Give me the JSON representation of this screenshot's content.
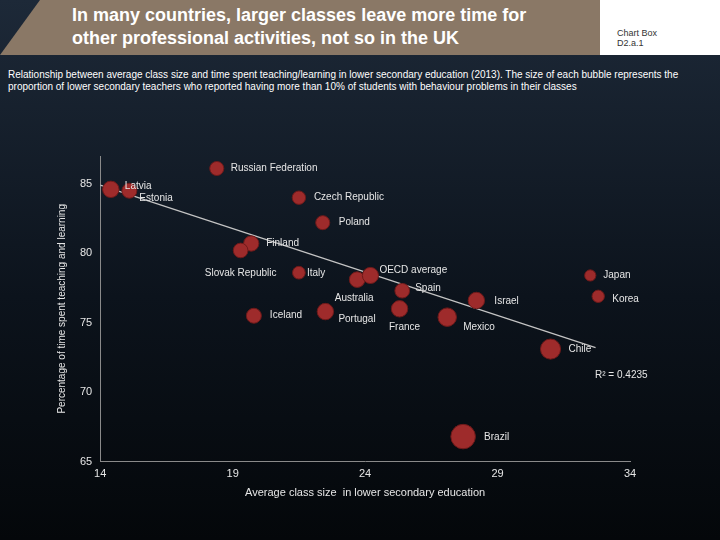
{
  "chart_data": {
    "type": "bubble",
    "title": "In many countries, larger classes leave more time for other professional activities, not so in the UK",
    "chart_box": [
      "Chart Box",
      "D2.a.1"
    ],
    "subtitle": "Relationship between average class size and time spent teaching/learning in lower secondary education (2013). The size of each bubble represents the proportion of lower secondary teachers who reported having more than 10% of students with behaviour problems in their classes",
    "x_label": "Average class size  in lower secondary education",
    "y_label": "Percentage of time spent teaching and learning",
    "xlim": [
      14,
      34
    ],
    "xticks": [
      14,
      19,
      24,
      29,
      34
    ],
    "ylim": [
      65,
      87
    ],
    "yticks": [
      65,
      70,
      75,
      80,
      85
    ],
    "grid": false,
    "color": "#9e2b2b",
    "points": [
      {
        "label": "Latvia",
        "x": 14.4,
        "y": 84.6,
        "size": 30
      },
      {
        "label": "Estonia",
        "x": 15.1,
        "y": 84.5,
        "size": 25
      },
      {
        "label": "Russian Federation",
        "x": 18.4,
        "y": 86.1,
        "size": 22
      },
      {
        "label": "Czech Republic",
        "x": 21.5,
        "y": 84.0,
        "size": 20
      },
      {
        "label": "Poland",
        "x": 22.4,
        "y": 82.2,
        "size": 22
      },
      {
        "label": "Finland",
        "x": 19.7,
        "y": 80.7,
        "size": 26
      },
      {
        "label": "Slovak Republic",
        "x": 19.3,
        "y": 80.2,
        "size": 24
      },
      {
        "label": "Italy",
        "x": 21.5,
        "y": 78.6,
        "size": 18
      },
      {
        "label": "Australia",
        "x": 23.7,
        "y": 78.1,
        "size": 27
      },
      {
        "label": "OECD average",
        "x": 24.2,
        "y": 78.4,
        "size": 29
      },
      {
        "label": "Spain",
        "x": 25.4,
        "y": 77.3,
        "size": 24
      },
      {
        "label": "Portugal",
        "x": 22.5,
        "y": 75.8,
        "size": 30
      },
      {
        "label": "Iceland",
        "x": 19.8,
        "y": 75.5,
        "size": 25
      },
      {
        "label": "France",
        "x": 25.3,
        "y": 76.0,
        "size": 30
      },
      {
        "label": "Israel",
        "x": 28.2,
        "y": 76.6,
        "size": 30
      },
      {
        "label": "Mexico",
        "x": 27.1,
        "y": 75.4,
        "size": 38
      },
      {
        "label": "Chile",
        "x": 31.0,
        "y": 73.1,
        "size": 45
      },
      {
        "label": "Japan",
        "x": 32.5,
        "y": 78.4,
        "size": 14
      },
      {
        "label": "Korea",
        "x": 32.8,
        "y": 76.9,
        "size": 17
      },
      {
        "label": "Brazil",
        "x": 27.7,
        "y": 66.8,
        "size": 67
      }
    ],
    "trend": {
      "x": [
        14,
        32.7
      ],
      "y": [
        84.9,
        73.2
      ],
      "color": "#c4c4c4"
    },
    "annotations": [
      "R² = 0.4235"
    ]
  }
}
